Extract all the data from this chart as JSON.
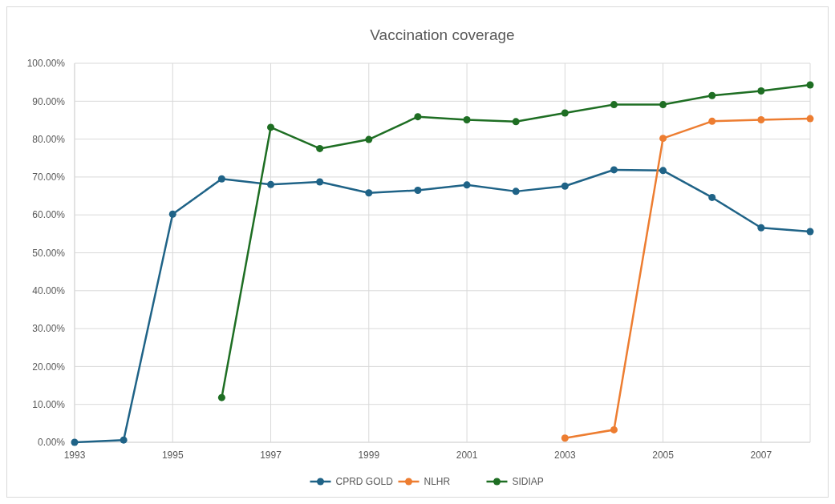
{
  "chart_data": {
    "type": "line",
    "title": "Vaccination coverage",
    "x": [
      1993,
      1994,
      1995,
      1996,
      1997,
      1998,
      1999,
      2000,
      2001,
      2002,
      2003,
      2004,
      2005,
      2006,
      2007,
      2008
    ],
    "series": [
      {
        "name": "CPRD GOLD",
        "color": "#1f6387",
        "values": [
          0,
          0.6,
          60.2,
          69.5,
          68,
          68.7,
          65.8,
          66.5,
          67.9,
          66.2,
          67.6,
          71.9,
          71.7,
          64.6,
          56.6,
          55.6
        ]
      },
      {
        "name": "NLHR",
        "color": "#ed7d31",
        "values": [
          null,
          null,
          null,
          null,
          null,
          null,
          null,
          null,
          null,
          null,
          1.1,
          3.3,
          80.2,
          84.7,
          85.1,
          85.4
        ]
      },
      {
        "name": "SIDIAP",
        "color": "#1e6e23",
        "values": [
          null,
          null,
          null,
          11.8,
          83.1,
          77.5,
          79.9,
          85.9,
          85.1,
          84.6,
          86.9,
          89.1,
          89.1,
          91.5,
          92.7,
          94.3
        ]
      }
    ],
    "xlim": [
      1993,
      2008
    ],
    "xticks": [
      1993,
      1995,
      1997,
      1999,
      2001,
      2003,
      2005,
      2007
    ],
    "ylim": [
      0,
      100
    ],
    "yticks": [
      {
        "value": 0,
        "label": "0.00%"
      },
      {
        "value": 10,
        "label": "10.00%"
      },
      {
        "value": 20,
        "label": "20.00%"
      },
      {
        "value": 30,
        "label": "30.00%"
      },
      {
        "value": 40,
        "label": "40.00%"
      },
      {
        "value": 50,
        "label": "50.00%"
      },
      {
        "value": 60,
        "label": "60.00%"
      },
      {
        "value": 70,
        "label": "70.00%"
      },
      {
        "value": 80,
        "label": "80.00%"
      },
      {
        "value": 90,
        "label": "90.00%"
      },
      {
        "value": 100,
        "label": "100.00%"
      }
    ],
    "grid": true,
    "legend": "bottom",
    "marker": "circle"
  }
}
